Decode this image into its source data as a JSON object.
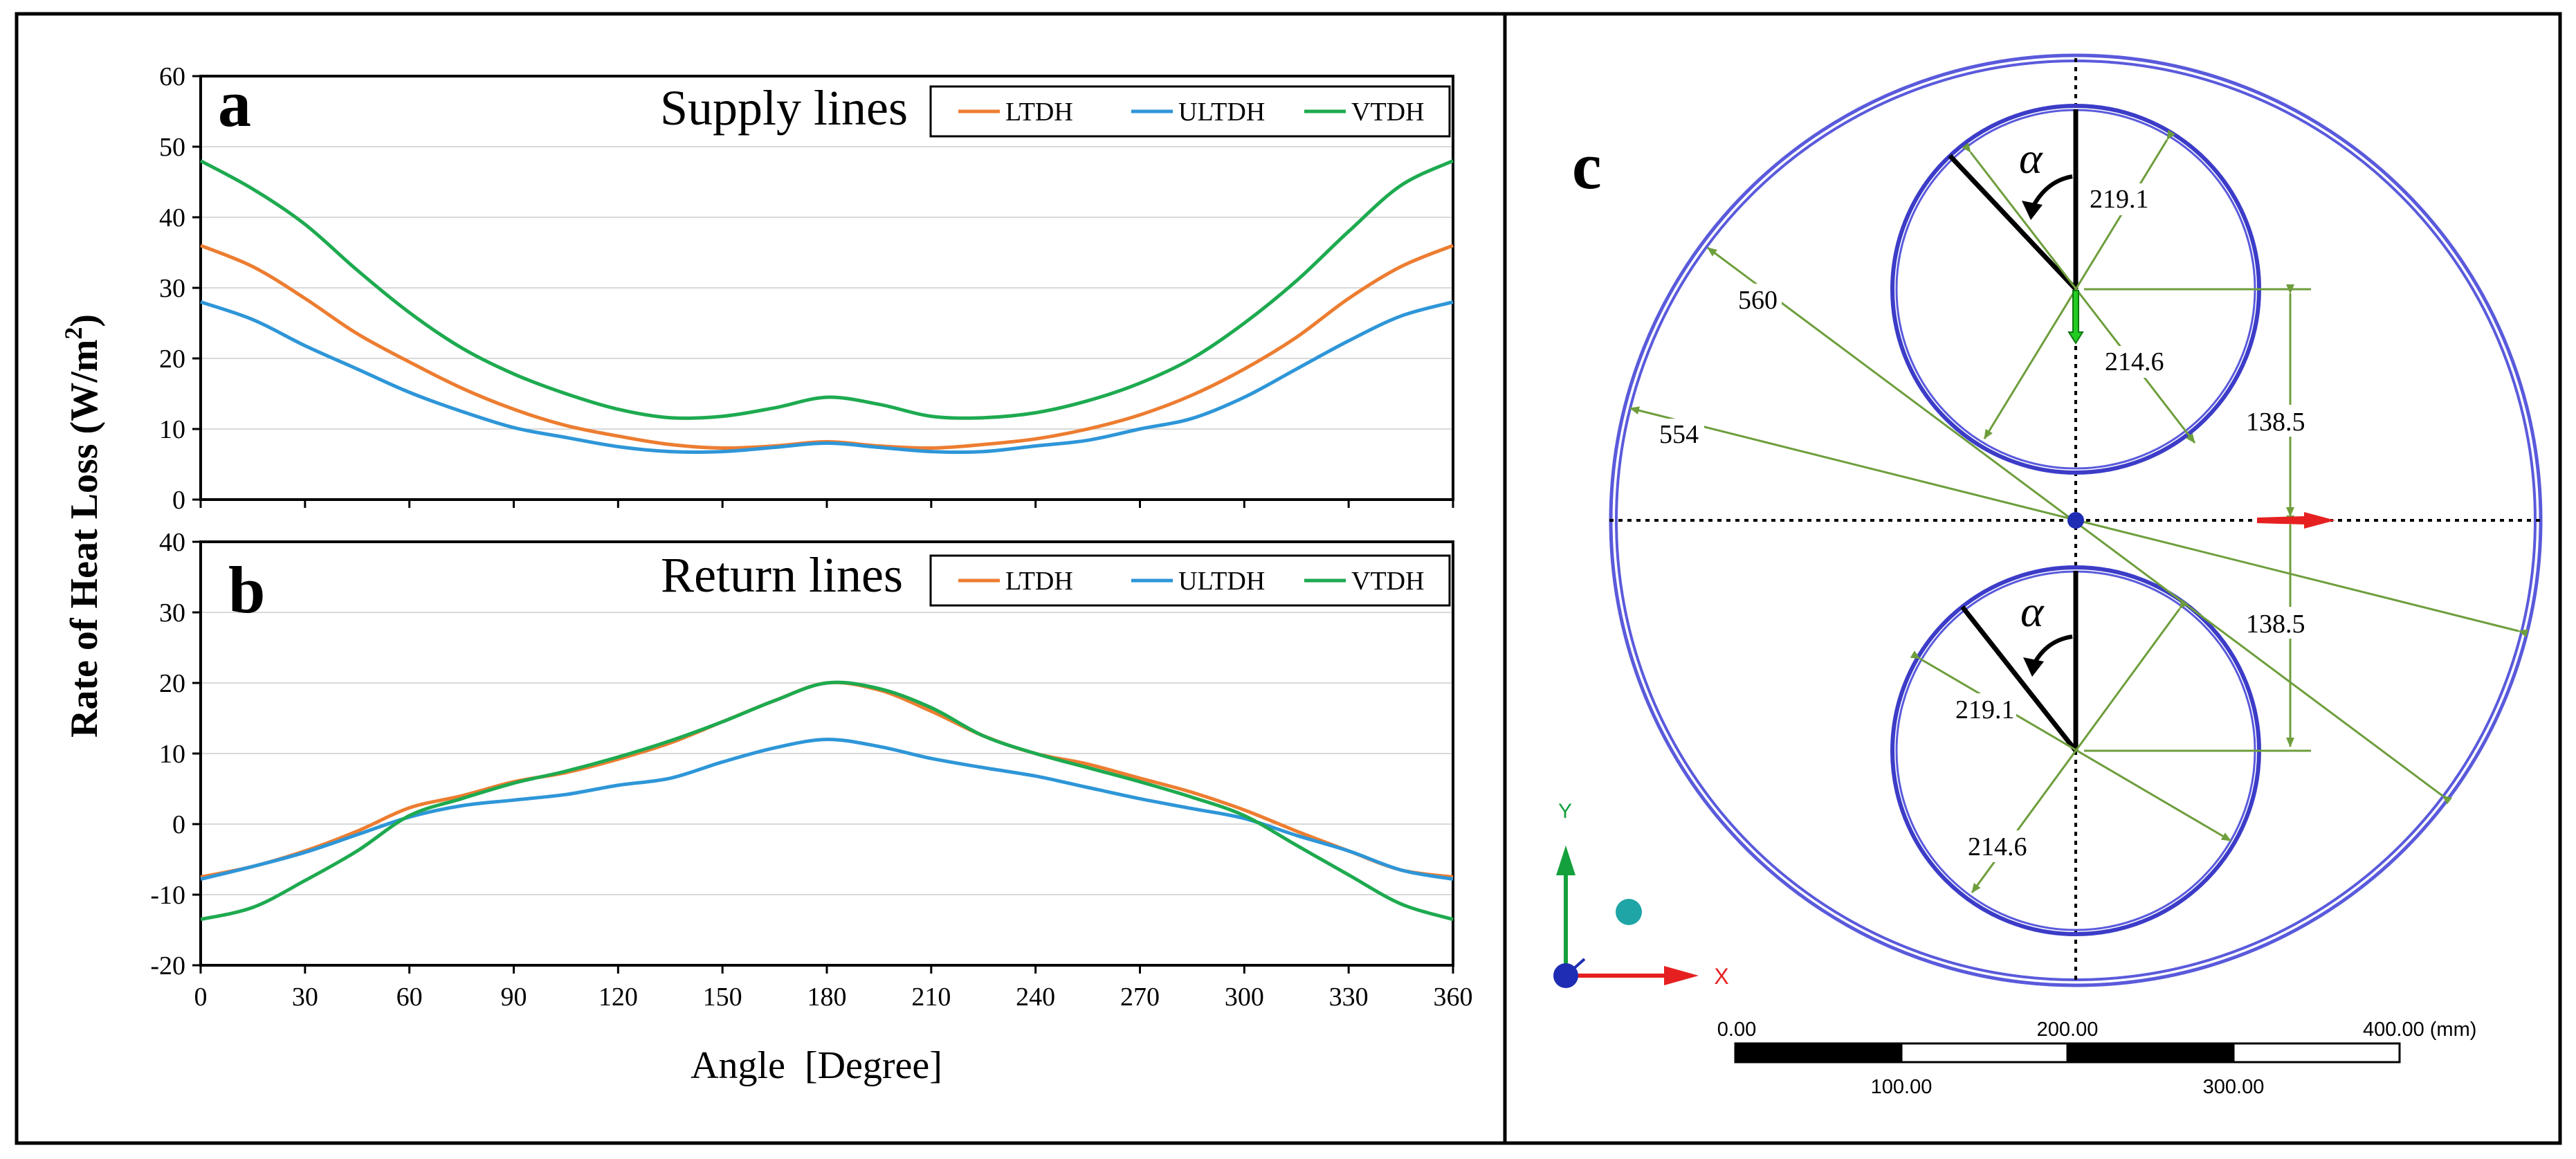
{
  "colors": {
    "LTDH": "#ED7D31",
    "ULTDH": "#2E96D8",
    "VTDH": "#1EAA50",
    "grid": "#D9D9D9",
    "circle": "#5A5ADC",
    "dimension": "#6E9E3C",
    "axis_y": "#14A03C",
    "axis_x": "#E62020",
    "sphere": "#1FA5A5",
    "origin": "#1E2DB4"
  },
  "y_axis_label": "Rate of Heat Loss (W/m²)",
  "y_axis_label_main": "Rate of Heat Loss (W/m",
  "y_axis_label_sup": "2",
  "y_axis_label_close": ")",
  "chart_data": [
    {
      "type": "line",
      "panel_letter": "a",
      "title": "Supply lines",
      "xlabel": "Angle  [Degree]",
      "ylabel": "Rate of Heat Loss (W/m²)",
      "xlim": [
        0,
        360
      ],
      "ylim": [
        0,
        60
      ],
      "xticks": [
        0,
        30,
        60,
        90,
        120,
        150,
        180,
        210,
        240,
        270,
        300,
        330,
        360
      ],
      "yticks": [
        0,
        10,
        20,
        30,
        40,
        50,
        60
      ],
      "grid": true,
      "legend": "top-right",
      "x": [
        0,
        15,
        30,
        45,
        60,
        75,
        90,
        105,
        120,
        135,
        150,
        165,
        180,
        195,
        210,
        225,
        240,
        255,
        270,
        285,
        300,
        315,
        330,
        345,
        360
      ],
      "series": [
        {
          "name": "LTDH",
          "values": [
            36,
            33,
            28.5,
            23.5,
            19.5,
            15.8,
            12.8,
            10.5,
            9,
            7.8,
            7.3,
            7.6,
            8.2,
            7.6,
            7.3,
            7.8,
            8.6,
            10,
            12,
            14.8,
            18.5,
            23,
            28.5,
            33,
            36
          ]
        },
        {
          "name": "ULTDH",
          "values": [
            28,
            25.5,
            21.8,
            18.5,
            15.2,
            12.5,
            10.2,
            8.8,
            7.5,
            6.8,
            6.8,
            7.4,
            8,
            7.4,
            6.8,
            6.8,
            7.6,
            8.4,
            10,
            11.5,
            14.5,
            18.5,
            22.5,
            26,
            28
          ]
        },
        {
          "name": "VTDH",
          "values": [
            48,
            44,
            39,
            32.5,
            26.5,
            21.5,
            17.8,
            15,
            12.8,
            11.6,
            11.8,
            13,
            14.5,
            13.5,
            11.8,
            11.6,
            12.3,
            14,
            16.5,
            20,
            25,
            31,
            38,
            44.5,
            48
          ]
        }
      ]
    },
    {
      "type": "line",
      "panel_letter": "b",
      "title": "Return lines",
      "xlabel": "Angle  [Degree]",
      "ylabel": "Rate of Heat Loss (W/m²)",
      "xlim": [
        0,
        360
      ],
      "ylim": [
        -20,
        40
      ],
      "xticks": [
        0,
        30,
        60,
        90,
        120,
        150,
        180,
        210,
        240,
        270,
        300,
        330,
        360
      ],
      "yticks": [
        -20,
        -10,
        0,
        10,
        20,
        30,
        40
      ],
      "grid": true,
      "legend": "top-right",
      "x": [
        0,
        15,
        30,
        45,
        60,
        75,
        90,
        105,
        120,
        135,
        150,
        165,
        180,
        195,
        210,
        225,
        240,
        255,
        270,
        285,
        300,
        315,
        330,
        345,
        360
      ],
      "series": [
        {
          "name": "LTDH",
          "values": [
            -7.5,
            -6,
            -3.8,
            -1,
            2.3,
            4,
            6,
            7.3,
            9.2,
            11.5,
            14.5,
            17.5,
            20,
            19,
            16,
            12.5,
            10,
            8.5,
            6.5,
            4.5,
            2,
            -1,
            -3.8,
            -6.5,
            -7.5
          ]
        },
        {
          "name": "ULTDH",
          "values": [
            -7.8,
            -6,
            -4,
            -1.5,
            1,
            2.6,
            3.4,
            4.2,
            5.5,
            6.5,
            8.8,
            10.8,
            12,
            11,
            9.3,
            8,
            6.8,
            5.2,
            3.6,
            2.2,
            0.8,
            -1.6,
            -3.8,
            -6.5,
            -7.8
          ]
        },
        {
          "name": "VTDH",
          "values": [
            -13.5,
            -11.8,
            -8,
            -3.8,
            1.2,
            3.6,
            5.8,
            7.5,
            9.5,
            11.8,
            14.5,
            17.5,
            20,
            19.2,
            16.5,
            12.5,
            10,
            8,
            6,
            3.8,
            1.2,
            -3,
            -7.2,
            -11.3,
            -13.5
          ]
        }
      ]
    }
  ],
  "diagram": {
    "panel_letter": "c",
    "alpha_symbol": "α",
    "dimensions": {
      "outer_diameter": "560",
      "inner_outer_diameter": "554",
      "pipe_outer_top": "219.1",
      "pipe_inner_top": "214.6",
      "pipe_outer_bottom": "219.1",
      "pipe_inner_bottom": "214.6",
      "offset_top": "138.5",
      "offset_bottom": "138.5"
    },
    "triad": {
      "y_label": "Y",
      "x_label": "X"
    },
    "scale_bar": {
      "top_labels": [
        "0.00",
        "200.00",
        "400.00 (mm)"
      ],
      "bottom_labels": [
        "100.00",
        "300.00"
      ]
    }
  }
}
